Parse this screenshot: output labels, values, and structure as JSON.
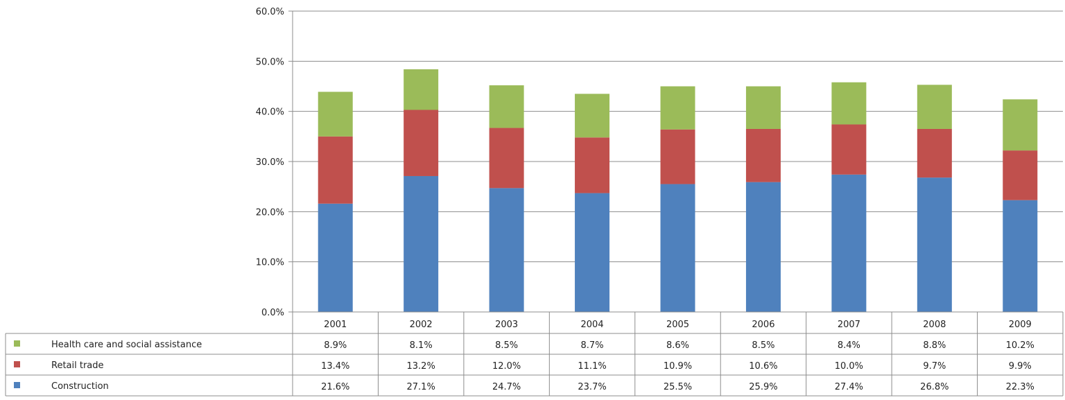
{
  "chart_data": {
    "type": "bar",
    "stacked": true,
    "categories": [
      "2001",
      "2002",
      "2003",
      "2004",
      "2005",
      "2006",
      "2007",
      "2008",
      "2009"
    ],
    "series": [
      {
        "name": "Construction",
        "color": "#4f81bd",
        "values": [
          21.6,
          27.1,
          24.7,
          23.7,
          25.5,
          25.9,
          27.4,
          26.8,
          22.3
        ],
        "labels": [
          "21.6%",
          "27.1%",
          "24.7%",
          "23.7%",
          "25.5%",
          "25.9%",
          "27.4%",
          "26.8%",
          "22.3%"
        ]
      },
      {
        "name": "Retail trade",
        "color": "#c0504d",
        "values": [
          13.4,
          13.2,
          12.0,
          11.1,
          10.9,
          10.6,
          10.0,
          9.7,
          9.9
        ],
        "labels": [
          "13.4%",
          "13.2%",
          "12.0%",
          "11.1%",
          "10.9%",
          "10.6%",
          "10.0%",
          "9.7%",
          "9.9%"
        ]
      },
      {
        "name": "Health care and social assistance",
        "color": "#9bbb59",
        "values": [
          8.9,
          8.1,
          8.5,
          8.7,
          8.6,
          8.5,
          8.4,
          8.8,
          10.2
        ],
        "labels": [
          "8.9%",
          "8.1%",
          "8.5%",
          "8.7%",
          "8.6%",
          "8.5%",
          "8.4%",
          "8.8%",
          "10.2%"
        ]
      }
    ],
    "yticks": [
      "0.0%",
      "10.0%",
      "20.0%",
      "30.0%",
      "40.0%",
      "50.0%",
      "60.0%"
    ],
    "ylim": [
      0,
      60
    ],
    "grid": true,
    "legend": "data-table-below"
  }
}
